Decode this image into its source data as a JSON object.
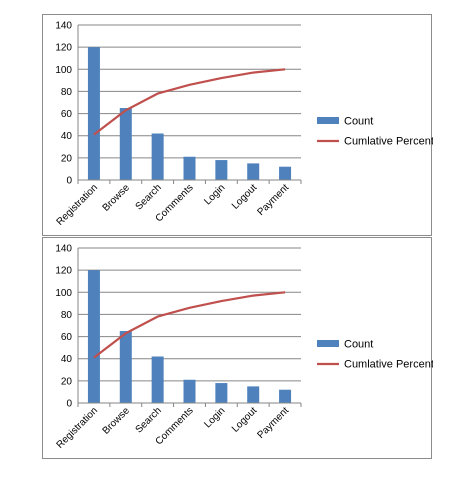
{
  "chart_data": [
    {
      "type": "bar",
      "categories": [
        "Registration",
        "Browse",
        "Search",
        "Comments",
        "Login",
        "Logout",
        "Payment"
      ],
      "ylim": [
        0,
        140
      ],
      "yticks": [
        0,
        20,
        40,
        60,
        80,
        100,
        120,
        140
      ],
      "grid": true,
      "legend_position": "right",
      "series": [
        {
          "name": "Count",
          "kind": "bar",
          "color": "#4f81bd",
          "values": [
            120,
            65,
            42,
            21,
            18,
            15,
            12
          ]
        },
        {
          "name": "Cumlative Percent",
          "kind": "line",
          "color": "#c0504d",
          "values": [
            41,
            63,
            78,
            86,
            92,
            97,
            100
          ]
        }
      ]
    },
    {
      "type": "bar",
      "categories": [
        "Registration",
        "Browse",
        "Search",
        "Comments",
        "Login",
        "Logout",
        "Payment"
      ],
      "ylim": [
        0,
        140
      ],
      "yticks": [
        0,
        20,
        40,
        60,
        80,
        100,
        120,
        140
      ],
      "grid": true,
      "legend_position": "right",
      "series": [
        {
          "name": "Count",
          "kind": "bar",
          "color": "#4f81bd",
          "values": [
            120,
            65,
            42,
            21,
            18,
            15,
            12
          ]
        },
        {
          "name": "Cumlative Percent",
          "kind": "line",
          "color": "#c0504d",
          "values": [
            41,
            63,
            78,
            86,
            92,
            97,
            100
          ]
        }
      ]
    }
  ]
}
